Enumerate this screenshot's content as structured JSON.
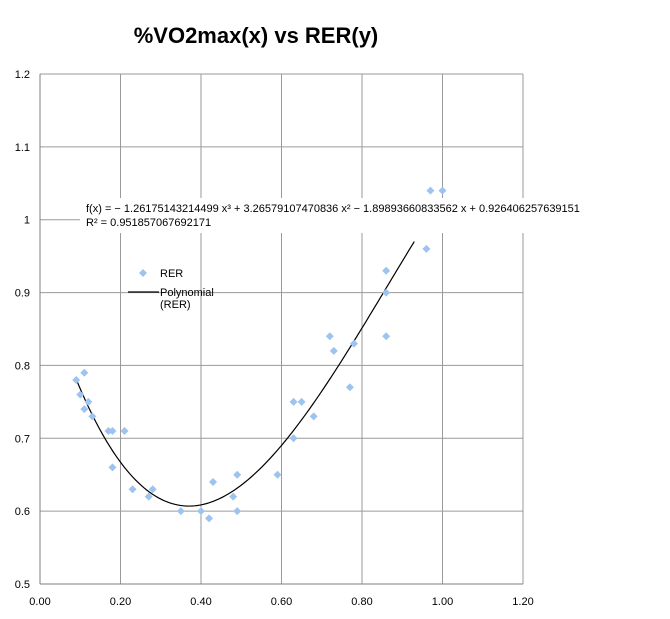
{
  "chart_data": {
    "type": "scatter",
    "title": "%VO2max(x) vs RER(y)",
    "xlabel": "",
    "ylabel": "",
    "xlim": [
      0,
      1.2
    ],
    "ylim": [
      0.5,
      1.2
    ],
    "x_ticks": [
      "0.00",
      "0.20",
      "0.40",
      "0.60",
      "0.80",
      "1.00",
      "1.20"
    ],
    "y_ticks": [
      "0.5",
      "0.6",
      "0.7",
      "0.8",
      "0.9",
      "1",
      "1.1",
      "1.2"
    ],
    "grid": true,
    "series": [
      {
        "name": "RER",
        "color": "#9dc3f0",
        "marker": "diamond",
        "points": [
          {
            "x": 0.09,
            "y": 0.78
          },
          {
            "x": 0.1,
            "y": 0.76
          },
          {
            "x": 0.11,
            "y": 0.79
          },
          {
            "x": 0.11,
            "y": 0.74
          },
          {
            "x": 0.12,
            "y": 0.75
          },
          {
            "x": 0.13,
            "y": 0.73
          },
          {
            "x": 0.17,
            "y": 0.71
          },
          {
            "x": 0.18,
            "y": 0.71
          },
          {
            "x": 0.18,
            "y": 0.66
          },
          {
            "x": 0.21,
            "y": 0.71
          },
          {
            "x": 0.23,
            "y": 0.63
          },
          {
            "x": 0.27,
            "y": 0.62
          },
          {
            "x": 0.28,
            "y": 0.63
          },
          {
            "x": 0.35,
            "y": 0.6
          },
          {
            "x": 0.4,
            "y": 0.6
          },
          {
            "x": 0.42,
            "y": 0.59
          },
          {
            "x": 0.43,
            "y": 0.64
          },
          {
            "x": 0.48,
            "y": 0.62
          },
          {
            "x": 0.49,
            "y": 0.6
          },
          {
            "x": 0.49,
            "y": 0.65
          },
          {
            "x": 0.59,
            "y": 0.65
          },
          {
            "x": 0.63,
            "y": 0.75
          },
          {
            "x": 0.63,
            "y": 0.7
          },
          {
            "x": 0.65,
            "y": 0.75
          },
          {
            "x": 0.68,
            "y": 0.73
          },
          {
            "x": 0.72,
            "y": 0.84
          },
          {
            "x": 0.73,
            "y": 0.82
          },
          {
            "x": 0.77,
            "y": 0.77
          },
          {
            "x": 0.78,
            "y": 0.83
          },
          {
            "x": 0.86,
            "y": 0.93
          },
          {
            "x": 0.86,
            "y": 0.9
          },
          {
            "x": 0.86,
            "y": 0.84
          },
          {
            "x": 0.96,
            "y": 0.96
          },
          {
            "x": 0.97,
            "y": 1.04
          },
          {
            "x": 1.0,
            "y": 1.04
          }
        ]
      },
      {
        "name": "Polynomial (RER)",
        "type": "trendline",
        "color": "#000000",
        "coefficients": [
          -1.26175143214499,
          3.26579107470836,
          -1.89893660833562,
          0.926406257639151
        ],
        "x_range": [
          0.09,
          0.93
        ]
      }
    ],
    "legend": {
      "position": "left",
      "items": [
        "RER",
        "Polynomial (RER)"
      ],
      "label_lines": [
        [
          "RER"
        ],
        [
          "Polynomial",
          "(RER)"
        ]
      ]
    },
    "annotations": {
      "equation": "f(x) = − 1.26175143214499 x³ + 3.26579107470836 x² − 1.89893660833562 x + 0.926406257639151",
      "r_squared": "R² = 0.951857067692171"
    }
  }
}
